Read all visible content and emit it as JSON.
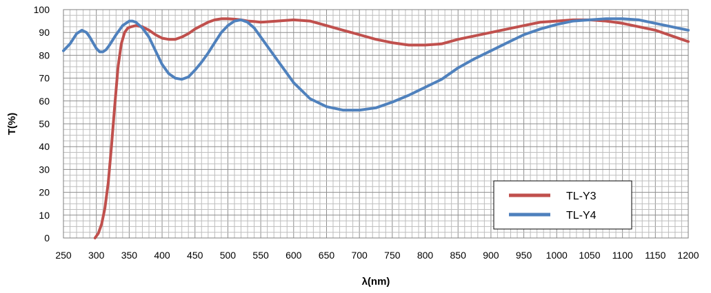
{
  "chart_data": {
    "type": "line",
    "xlabel": "λ(nm)",
    "ylabel": "T(%)",
    "xlim": [
      250,
      1200
    ],
    "ylim": [
      0,
      100
    ],
    "x_ticks": [
      250,
      300,
      350,
      400,
      450,
      500,
      550,
      600,
      650,
      700,
      750,
      800,
      850,
      900,
      950,
      1000,
      1050,
      1100,
      1150,
      1200
    ],
    "y_ticks": [
      0,
      10,
      20,
      30,
      40,
      50,
      60,
      70,
      80,
      90,
      100
    ],
    "grid": true,
    "legend_position": "bottom-right",
    "series": [
      {
        "name": "TL-Y3",
        "color": "#c0504d",
        "x": [
          298,
          303,
          308,
          313,
          318,
          323,
          328,
          333,
          338,
          343,
          348,
          353,
          360,
          370,
          380,
          390,
          400,
          410,
          420,
          430,
          440,
          450,
          460,
          470,
          480,
          490,
          500,
          510,
          520,
          530,
          540,
          550,
          575,
          600,
          625,
          650,
          675,
          700,
          725,
          750,
          775,
          800,
          825,
          850,
          875,
          900,
          925,
          950,
          975,
          1000,
          1025,
          1050,
          1075,
          1100,
          1125,
          1150,
          1175,
          1200
        ],
        "y": [
          0,
          2,
          6,
          13,
          24,
          40,
          58,
          75,
          85,
          90,
          92,
          92.5,
          93,
          92.5,
          91,
          89,
          87.5,
          87,
          87,
          88,
          89.5,
          91.5,
          93,
          94.5,
          95.5,
          96,
          96,
          95.8,
          95.5,
          95,
          94.8,
          94.5,
          95,
          95.5,
          95,
          93,
          91,
          89,
          87,
          85.5,
          84.5,
          84.5,
          85,
          87,
          88.5,
          90,
          91.5,
          93,
          94.5,
          95,
          95.5,
          95.5,
          95,
          94,
          92.5,
          91,
          88.5,
          86
        ]
      },
      {
        "name": "TL-Y4",
        "color": "#4f81bd",
        "x": [
          250,
          260,
          270,
          278,
          285,
          290,
          295,
          300,
          305,
          310,
          315,
          320,
          330,
          340,
          350,
          355,
          360,
          370,
          380,
          390,
          400,
          410,
          420,
          430,
          440,
          450,
          460,
          470,
          480,
          490,
          500,
          510,
          520,
          530,
          540,
          550,
          560,
          575,
          600,
          625,
          650,
          675,
          700,
          725,
          750,
          775,
          800,
          825,
          850,
          875,
          900,
          925,
          950,
          975,
          1000,
          1025,
          1050,
          1075,
          1100,
          1125,
          1150,
          1175,
          1200
        ],
        "y": [
          82,
          85,
          89.5,
          91,
          90,
          88,
          85.5,
          83,
          81.5,
          81.5,
          82.5,
          84.5,
          89,
          93,
          95,
          95,
          94.5,
          92,
          88,
          82,
          76,
          72,
          70,
          69.5,
          70.5,
          73.5,
          77,
          81,
          85.5,
          90,
          93,
          95,
          95.5,
          94.5,
          92,
          88,
          84,
          78,
          68,
          61,
          57.5,
          56,
          56,
          57,
          59.5,
          62.5,
          66,
          69.5,
          74.5,
          78.5,
          82,
          85.5,
          89,
          91.5,
          93.5,
          95,
          95.5,
          96,
          96,
          95.5,
          94,
          92.5,
          91
        ]
      }
    ]
  }
}
